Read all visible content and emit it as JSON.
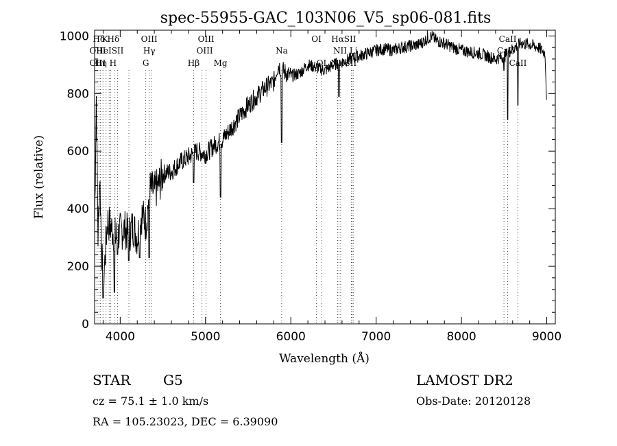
{
  "chart_data": {
    "type": "line",
    "title": "spec-55955-GAC_103N06_V5_sp06-081.fits",
    "xlabel": "Wavelength (Å)",
    "ylabel": "Flux (relative)",
    "xlim": [
      3700,
      9100
    ],
    "ylim": [
      0,
      1020
    ],
    "x_ticks": [
      4000,
      5000,
      6000,
      7000,
      8000,
      9000
    ],
    "y_ticks": [
      0,
      200,
      400,
      600,
      800,
      1000
    ],
    "grid": false,
    "series": [
      {
        "anchors": [
          [
            3700,
            340
          ],
          [
            3720,
            790
          ],
          [
            3740,
            300
          ],
          [
            3760,
            520
          ],
          [
            3780,
            280
          ],
          [
            3800,
            120
          ],
          [
            3850,
            360
          ],
          [
            3900,
            330
          ],
          [
            3950,
            300
          ],
          [
            4000,
            320
          ],
          [
            4050,
            330
          ],
          [
            4100,
            310
          ],
          [
            4150,
            340
          ],
          [
            4200,
            300
          ],
          [
            4250,
            380
          ],
          [
            4300,
            350
          ],
          [
            4350,
            470
          ],
          [
            4400,
            460
          ],
          [
            4450,
            480
          ],
          [
            4500,
            520
          ],
          [
            4600,
            530
          ],
          [
            4700,
            560
          ],
          [
            4800,
            580
          ],
          [
            4900,
            600
          ],
          [
            5000,
            590
          ],
          [
            5100,
            620
          ],
          [
            5200,
            640
          ],
          [
            5300,
            680
          ],
          [
            5400,
            720
          ],
          [
            5500,
            760
          ],
          [
            5600,
            790
          ],
          [
            5700,
            820
          ],
          [
            5800,
            840
          ],
          [
            5850,
            900
          ],
          [
            5900,
            880
          ],
          [
            6000,
            860
          ],
          [
            6100,
            870
          ],
          [
            6200,
            900
          ],
          [
            6300,
            890
          ],
          [
            6400,
            880
          ],
          [
            6500,
            900
          ],
          [
            6600,
            910
          ],
          [
            6700,
            920
          ],
          [
            6800,
            930
          ],
          [
            6900,
            940
          ],
          [
            7000,
            950
          ],
          [
            7100,
            955
          ],
          [
            7200,
            950
          ],
          [
            7300,
            960
          ],
          [
            7400,
            965
          ],
          [
            7500,
            970
          ],
          [
            7600,
            990
          ],
          [
            7650,
            1000
          ],
          [
            7700,
            985
          ],
          [
            7800,
            975
          ],
          [
            7900,
            960
          ],
          [
            8000,
            950
          ],
          [
            8100,
            945
          ],
          [
            8200,
            940
          ],
          [
            8300,
            930
          ],
          [
            8400,
            920
          ],
          [
            8500,
            930
          ],
          [
            8600,
            955
          ],
          [
            8700,
            975
          ],
          [
            8800,
            970
          ],
          [
            8900,
            960
          ],
          [
            8980,
            940
          ],
          [
            9000,
            760
          ]
        ],
        "dips": [
          [
            3800,
            90
          ],
          [
            3933,
            110
          ],
          [
            3968,
            240
          ],
          [
            4101,
            220
          ],
          [
            4227,
            230
          ],
          [
            4340,
            230
          ],
          [
            4861,
            490
          ],
          [
            5175,
            440
          ],
          [
            5893,
            630
          ],
          [
            6563,
            790
          ],
          [
            8498,
            880
          ],
          [
            8542,
            710
          ],
          [
            8662,
            760
          ]
        ]
      }
    ],
    "line_markers": [
      {
        "label": "Hδ",
        "x": 3750,
        "row": 1
      },
      {
        "label": "K",
        "x": 3820,
        "row": 1
      },
      {
        "label": "Hδ",
        "x": 3920,
        "row": 1
      },
      {
        "label": "OIII",
        "x": 4340,
        "row": 1
      },
      {
        "label": "OIII",
        "x": 5007,
        "row": 1
      },
      {
        "label": "OI",
        "x": 6300,
        "row": 1
      },
      {
        "label": "HαSII",
        "x": 6620,
        "row": 1
      },
      {
        "label": "CaII",
        "x": 8542,
        "row": 1
      },
      {
        "label": "OIII",
        "x": 3735,
        "row": 2
      },
      {
        "label": "HeISII",
        "x": 3880,
        "row": 2
      },
      {
        "label": "Hγ",
        "x": 4340,
        "row": 2
      },
      {
        "label": "OIII",
        "x": 4990,
        "row": 2
      },
      {
        "label": "Na",
        "x": 5893,
        "row": 2
      },
      {
        "label": "NII Li",
        "x": 6640,
        "row": 2
      },
      {
        "label": "CaII",
        "x": 8520,
        "row": 2
      },
      {
        "label": "OIII",
        "x": 3735,
        "row": 3
      },
      {
        "label": "Hη H",
        "x": 3830,
        "row": 3
      },
      {
        "label": "G",
        "x": 4300,
        "row": 3
      },
      {
        "label": "Hβ",
        "x": 4861,
        "row": 3
      },
      {
        "label": "Mg",
        "x": 5175,
        "row": 3
      },
      {
        "label": "OI",
        "x": 6360,
        "row": 3
      },
      {
        "label": "NIISII",
        "x": 6620,
        "row": 3
      },
      {
        "label": "CaII",
        "x": 8662,
        "row": 3
      }
    ],
    "marker_lines": [
      3727,
      3750,
      3770,
      3798,
      3835,
      3870,
      3889,
      3934,
      3969,
      4102,
      4300,
      4340,
      4363,
      4861,
      4959,
      5007,
      5175,
      5893,
      6300,
      6364,
      6548,
      6563,
      6584,
      6708,
      6717,
      6731,
      8498,
      8542,
      8662
    ]
  },
  "info": {
    "class_label": "STAR",
    "subclass": "G5",
    "survey": "LAMOST DR2",
    "redshift": "cz = 75.1 ± 1.0 km/s",
    "obs_date": "Obs-Date: 20120128",
    "coords": "RA = 105.23023, DEC =   6.39090"
  }
}
